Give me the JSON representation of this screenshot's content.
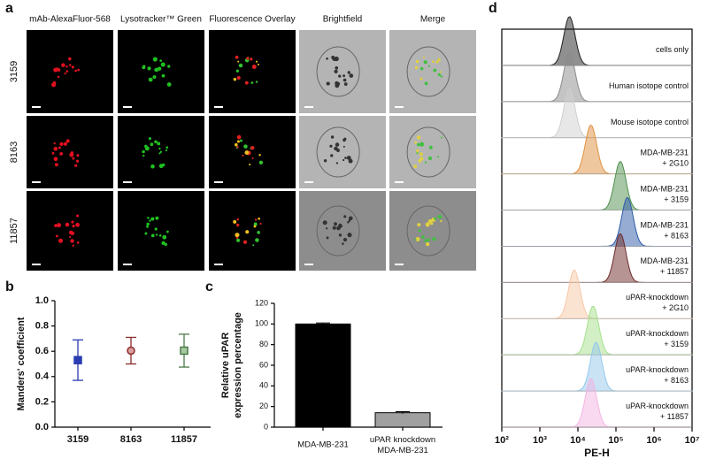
{
  "panel_labels": [
    "a",
    "b",
    "c",
    "d"
  ],
  "microscopy": {
    "columns": [
      "mAb-AlexaFluor-568",
      "Lysotracker™ Green",
      "Fluorescence Overlay",
      "Brightfield",
      "Merge"
    ],
    "rows": [
      "3159",
      "8163",
      "11857"
    ]
  },
  "chart_data": [
    {
      "type": "errorbar",
      "ylabel": "Manders' coefficient",
      "categories": [
        "3159",
        "8163",
        "11857"
      ],
      "values": [
        0.53,
        0.605,
        0.605
      ],
      "errors": [
        0.16,
        0.105,
        0.13
      ],
      "colors": [
        "#2a3cb0",
        "#8b2a2a",
        "#4a7a4a"
      ],
      "markers": [
        "square",
        "circle",
        "square"
      ],
      "ylim": [
        0,
        1
      ],
      "yticks": [
        {
          "value": 0,
          "label": "0.0"
        },
        {
          "value": 0.2,
          "label": "0.2"
        },
        {
          "value": 0.4,
          "label": "0.4"
        },
        {
          "value": 0.6,
          "label": "0.6"
        },
        {
          "value": 0.8,
          "label": "0.8"
        },
        {
          "value": 1,
          "label": "1.0"
        }
      ]
    },
    {
      "type": "bar",
      "ylabel": [
        "Relative uPAR",
        "expression percentage"
      ],
      "categories": [
        "MDA-MB-231",
        "uPAR knockdown\nMDA-MB-231"
      ],
      "values": [
        100,
        14
      ],
      "errors": [
        1,
        1
      ],
      "colors": [
        "#000000",
        "#a0a0a0"
      ],
      "ylim": [
        0,
        120
      ],
      "yticks": [
        0,
        20,
        40,
        60,
        80,
        100,
        120
      ]
    },
    {
      "type": "ridgeline",
      "xlabel": "PE-H",
      "log_x": true,
      "xlim": [
        100,
        10000000
      ],
      "xticks": [
        {
          "value": 100,
          "label": "10²"
        },
        {
          "value": 1000,
          "label": "10³"
        },
        {
          "value": 10000,
          "label": "10⁴"
        },
        {
          "value": 100000,
          "label": "10⁵"
        },
        {
          "value": 1000000,
          "label": "10⁶"
        },
        {
          "value": 10000000,
          "label": "10⁷"
        }
      ],
      "series": [
        {
          "name": "cells only",
          "color": "#222222",
          "peak": 6000
        },
        {
          "name": "Human isotope control",
          "color": "#8a8a8a",
          "peak": 6000
        },
        {
          "name": "Mouse isotope control",
          "color": "#cfcfcf",
          "peak": 6000
        },
        {
          "name": "MDA-MB-231\n+ 2G10",
          "color": "#e09040",
          "peak": 22000
        },
        {
          "name": "MDA-MB-231\n+ 3159",
          "color": "#4f9050",
          "peak": 130000
        },
        {
          "name": "MDA-MB-231\n+ 8163",
          "color": "#2d5aa8",
          "peak": 200000
        },
        {
          "name": "MDA-MB-231\n+ 11857",
          "color": "#6e2a2a",
          "peak": 130000
        },
        {
          "name": "uPAR-knockdown\n+ 2G10",
          "color": "#f7c8a6",
          "peak": 8000
        },
        {
          "name": "uPAR-knockdown\n+ 3159",
          "color": "#a6e08c",
          "peak": 25000
        },
        {
          "name": "uPAR-knockdown\n+ 8163",
          "color": "#94c8ec",
          "peak": 30000
        },
        {
          "name": "uPAR-knockdown\n+ 11857",
          "color": "#f2b4e2",
          "peak": 22000
        }
      ]
    }
  ]
}
